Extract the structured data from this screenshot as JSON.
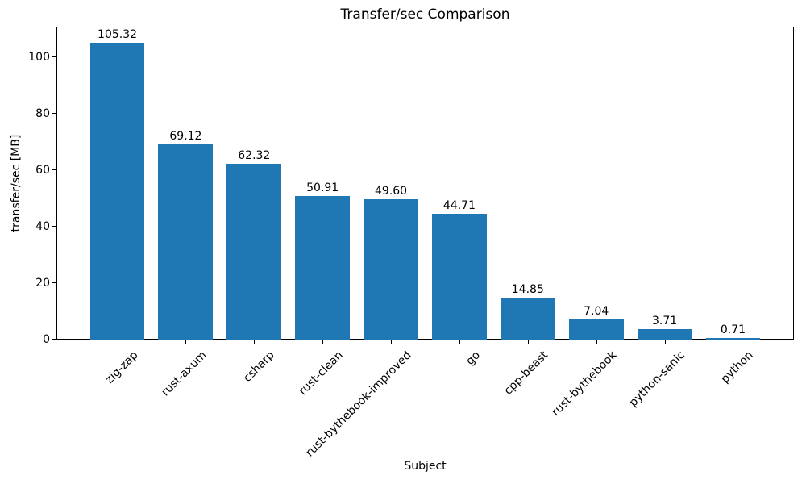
{
  "chart_data": {
    "type": "bar",
    "title": "Transfer/sec Comparison",
    "xlabel": "Subject",
    "ylabel": "transfer/sec [MB]",
    "categories": [
      "zig-zap",
      "rust-axum",
      "csharp",
      "rust-clean",
      "rust-bythebook-improved",
      "go",
      "cpp-beast",
      "rust-bythebook",
      "python-sanic",
      "python"
    ],
    "values": [
      105.32,
      69.12,
      62.32,
      50.91,
      49.6,
      44.71,
      14.85,
      7.04,
      3.71,
      0.71
    ],
    "bar_value_labels": [
      "105.32",
      "69.12",
      "62.32",
      "50.91",
      "49.60",
      "44.71",
      "14.85",
      "7.04",
      "3.71",
      "0.71"
    ],
    "yticks": [
      0,
      20,
      40,
      60,
      80,
      100
    ],
    "ytick_labels": [
      "0",
      "20",
      "40",
      "60",
      "80",
      "100"
    ],
    "ylim": [
      0,
      110.9
    ],
    "bar_width_fraction": 0.8,
    "tick_label_rotation_deg": 45,
    "grid": false,
    "legend": "none",
    "bar_color": "#1f77b4",
    "text_color": "#000000",
    "spine_color": "#000000",
    "background_color": "#ffffff"
  }
}
